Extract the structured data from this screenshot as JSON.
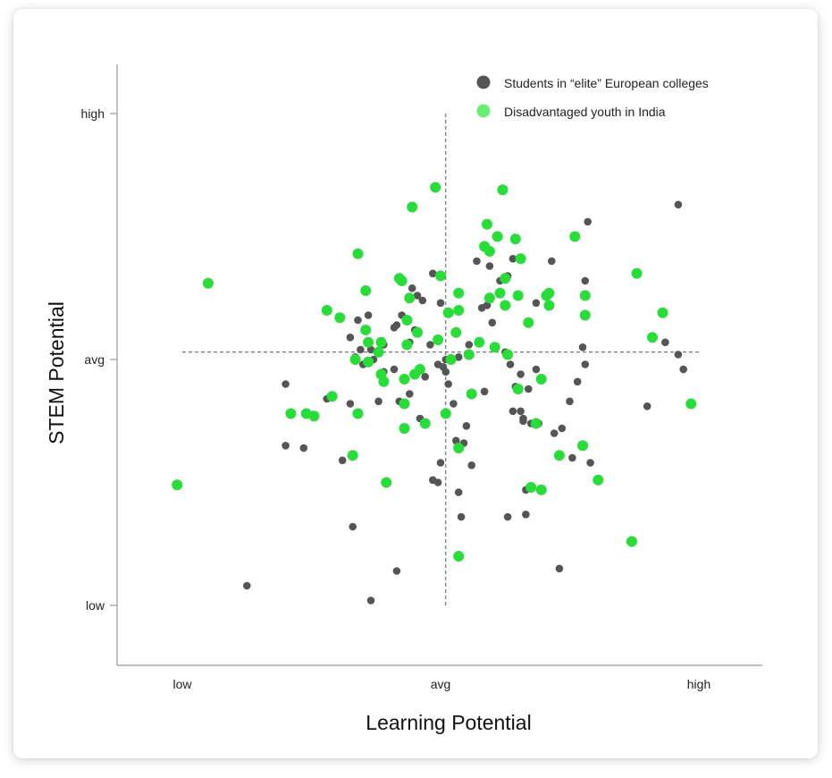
{
  "chart_data": {
    "type": "scatter",
    "xlabel": "Learning Potential",
    "ylabel": "STEM Potential",
    "x_ticks": [
      {
        "value": 0,
        "label": "low"
      },
      {
        "value": 1,
        "label": "avg"
      },
      {
        "value": 2,
        "label": "high"
      }
    ],
    "y_ticks": [
      {
        "value": 0,
        "label": "low"
      },
      {
        "value": 1,
        "label": "avg"
      },
      {
        "value": 2,
        "label": "high"
      }
    ],
    "xlim": [
      -0.25,
      2.25
    ],
    "ylim": [
      -0.25,
      2.2
    ],
    "reference_lines": {
      "x": 1.02,
      "y": 1.03
    },
    "legend": {
      "position": "top-right"
    },
    "colors": {
      "elite": "#555555",
      "india": "#29dd39",
      "india_legend": "#66ef72",
      "axis": "#999999",
      "guide": "#555555"
    },
    "series": [
      {
        "name": "Students in “elite” European colleges",
        "color": "#555555",
        "points": [
          [
            0.4,
            0.9
          ],
          [
            0.4,
            0.65
          ],
          [
            0.51,
            0.77
          ],
          [
            0.56,
            0.84
          ],
          [
            0.62,
            0.59
          ],
          [
            0.65,
            0.82
          ],
          [
            0.66,
            0.32
          ],
          [
            0.65,
            1.09
          ],
          [
            0.67,
            1.01
          ],
          [
            0.7,
            0.98
          ],
          [
            0.69,
            1.04
          ],
          [
            0.68,
            1.16
          ],
          [
            0.72,
            1.18
          ],
          [
            0.73,
            1.04
          ],
          [
            0.74,
            1.0
          ],
          [
            0.76,
            0.83
          ],
          [
            0.78,
            0.95
          ],
          [
            0.78,
            1.06
          ],
          [
            0.82,
            1.13
          ],
          [
            0.82,
            0.96
          ],
          [
            0.83,
            1.14
          ],
          [
            0.85,
            1.18
          ],
          [
            0.84,
            0.83
          ],
          [
            0.88,
            1.07
          ],
          [
            0.89,
            1.29
          ],
          [
            0.9,
            1.12
          ],
          [
            0.91,
            1.26
          ],
          [
            0.92,
            0.76
          ],
          [
            0.93,
            1.24
          ],
          [
            0.94,
            0.93
          ],
          [
            0.96,
            1.06
          ],
          [
            0.97,
            1.35
          ],
          [
            0.99,
            0.98
          ],
          [
            1.0,
            0.58
          ],
          [
            1.0,
            1.23
          ],
          [
            1.01,
            0.97
          ],
          [
            1.02,
            0.95
          ],
          [
            1.02,
            1.0
          ],
          [
            1.03,
            0.9
          ],
          [
            1.06,
            0.67
          ],
          [
            1.07,
            1.01
          ],
          [
            1.09,
            0.66
          ],
          [
            1.07,
            0.46
          ],
          [
            1.08,
            0.36
          ],
          [
            1.1,
            0.73
          ],
          [
            1.11,
            1.06
          ],
          [
            1.12,
            0.57
          ],
          [
            1.14,
            1.4
          ],
          [
            1.16,
            1.21
          ],
          [
            1.17,
            0.87
          ],
          [
            1.18,
            1.22
          ],
          [
            1.19,
            1.38
          ],
          [
            1.2,
            1.15
          ],
          [
            1.23,
            1.32
          ],
          [
            1.25,
            1.03
          ],
          [
            1.26,
            0.36
          ],
          [
            1.26,
            1.34
          ],
          [
            1.28,
            1.41
          ],
          [
            1.27,
            0.98
          ],
          [
            1.28,
            0.79
          ],
          [
            1.29,
            0.89
          ],
          [
            1.31,
            0.94
          ],
          [
            1.31,
            0.79
          ],
          [
            1.32,
            0.75
          ],
          [
            1.33,
            0.47
          ],
          [
            1.32,
            0.76
          ],
          [
            1.33,
            0.37
          ],
          [
            1.34,
            0.88
          ],
          [
            1.35,
            0.74
          ],
          [
            1.37,
            0.96
          ],
          [
            1.38,
            0.74
          ],
          [
            1.37,
            1.23
          ],
          [
            1.43,
            1.4
          ],
          [
            1.44,
            0.7
          ],
          [
            1.46,
            0.15
          ],
          [
            1.47,
            0.72
          ],
          [
            1.5,
            0.83
          ],
          [
            1.51,
            0.6
          ],
          [
            1.53,
            0.91
          ],
          [
            1.55,
            1.05
          ],
          [
            1.56,
            1.32
          ],
          [
            1.56,
            0.98
          ],
          [
            1.57,
            1.56
          ],
          [
            1.58,
            0.58
          ],
          [
            1.8,
            0.81
          ],
          [
            1.87,
            1.07
          ],
          [
            1.92,
            1.02
          ],
          [
            1.94,
            0.96
          ],
          [
            1.92,
            1.63
          ],
          [
            0.25,
            0.08
          ],
          [
            0.47,
            0.64
          ],
          [
            0.88,
            0.86
          ],
          [
            1.05,
            0.82
          ],
          [
            0.73,
            0.02
          ],
          [
            0.83,
            0.14
          ],
          [
            0.97,
            0.51
          ],
          [
            0.99,
            0.5
          ]
        ]
      },
      {
        "name": "Disadvantaged youth in India",
        "color": "#29dd39",
        "points": [
          [
            -0.02,
            0.49
          ],
          [
            0.1,
            1.31
          ],
          [
            0.42,
            0.78
          ],
          [
            0.51,
            0.77
          ],
          [
            0.56,
            1.2
          ],
          [
            0.58,
            0.85
          ],
          [
            0.61,
            1.17
          ],
          [
            0.66,
            0.61
          ],
          [
            0.67,
            1.0
          ],
          [
            0.68,
            0.78
          ],
          [
            0.68,
            1.43
          ],
          [
            0.71,
            1.28
          ],
          [
            0.71,
            1.12
          ],
          [
            0.72,
            0.99
          ],
          [
            0.72,
            1.07
          ],
          [
            0.76,
            1.03
          ],
          [
            0.77,
            1.07
          ],
          [
            0.77,
            0.94
          ],
          [
            0.78,
            0.91
          ],
          [
            0.79,
            0.5
          ],
          [
            0.85,
            1.32
          ],
          [
            0.84,
            1.33
          ],
          [
            0.87,
            1.06
          ],
          [
            0.87,
            1.16
          ],
          [
            0.86,
            0.82
          ],
          [
            0.86,
            0.92
          ],
          [
            0.86,
            0.72
          ],
          [
            0.88,
            1.25
          ],
          [
            0.9,
            0.94
          ],
          [
            0.89,
            1.62
          ],
          [
            0.91,
            1.11
          ],
          [
            0.94,
            0.74
          ],
          [
            0.92,
            0.96
          ],
          [
            0.98,
            1.7
          ],
          [
            0.99,
            1.08
          ],
          [
            1.0,
            1.34
          ],
          [
            1.02,
            0.78
          ],
          [
            1.03,
            1.19
          ],
          [
            1.04,
            1.0
          ],
          [
            1.06,
            1.11
          ],
          [
            1.07,
            1.27
          ],
          [
            1.07,
            1.2
          ],
          [
            1.07,
            0.64
          ],
          [
            1.07,
            0.2
          ],
          [
            1.11,
            1.02
          ],
          [
            1.12,
            0.86
          ],
          [
            1.15,
            1.07
          ],
          [
            1.17,
            1.46
          ],
          [
            1.18,
            1.55
          ],
          [
            1.19,
            1.44
          ],
          [
            1.19,
            1.25
          ],
          [
            1.21,
            1.05
          ],
          [
            1.22,
            1.5
          ],
          [
            1.23,
            1.27
          ],
          [
            1.24,
            1.69
          ],
          [
            1.25,
            1.22
          ],
          [
            1.25,
            1.33
          ],
          [
            1.26,
            1.02
          ],
          [
            1.29,
            1.49
          ],
          [
            1.3,
            0.88
          ],
          [
            1.3,
            1.26
          ],
          [
            1.31,
            1.41
          ],
          [
            1.34,
            1.15
          ],
          [
            1.35,
            0.48
          ],
          [
            1.37,
            0.74
          ],
          [
            1.39,
            0.47
          ],
          [
            1.39,
            0.92
          ],
          [
            1.41,
            1.26
          ],
          [
            1.42,
            1.22
          ],
          [
            1.42,
            1.27
          ],
          [
            1.46,
            0.61
          ],
          [
            1.52,
            1.5
          ],
          [
            1.55,
            0.65
          ],
          [
            1.56,
            1.18
          ],
          [
            1.56,
            1.26
          ],
          [
            1.61,
            0.51
          ],
          [
            1.74,
            0.26
          ],
          [
            1.76,
            1.35
          ],
          [
            1.82,
            1.09
          ],
          [
            1.86,
            1.19
          ],
          [
            1.97,
            0.82
          ],
          [
            0.48,
            0.78
          ]
        ]
      }
    ]
  }
}
